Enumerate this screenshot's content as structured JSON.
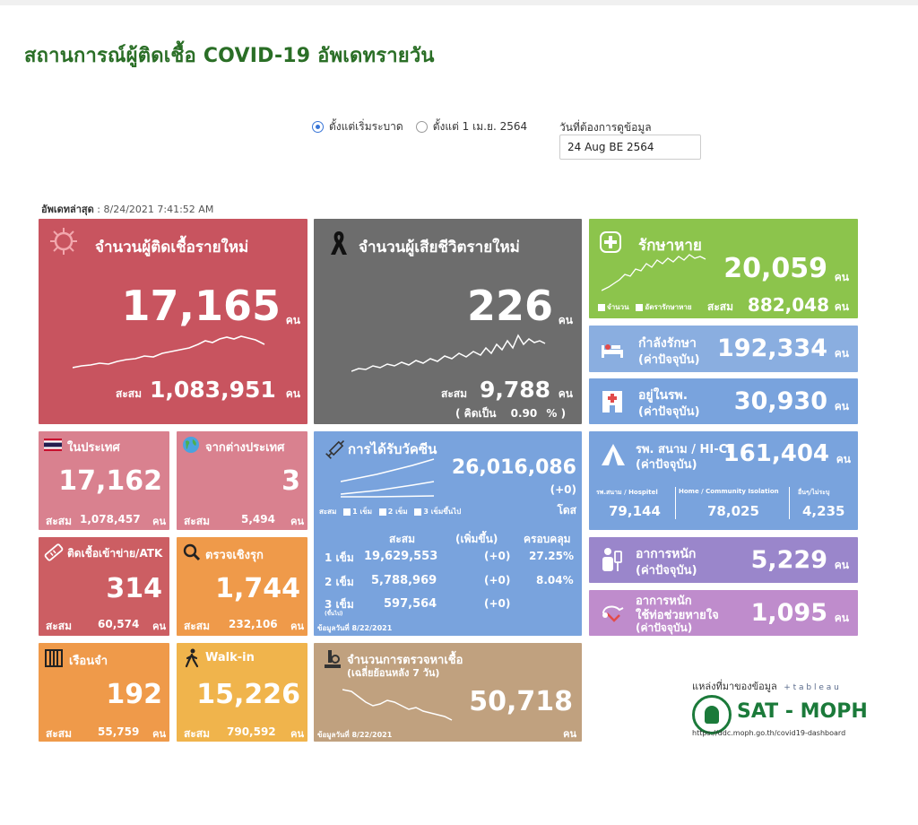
{
  "page_title": "สถานการณ์ผู้ติดเชื้อ COVID-19 อัพเดทรายวัน",
  "filters": {
    "option_all": "ตั้งแต่เริ่มระบาด",
    "option_april": "ตั้งแต่ 1 เม.ย. 2564",
    "date_label": "วันที่ต้องการดูข้อมูล",
    "date_value": "24 Aug BE 2564"
  },
  "updated": {
    "label": "อัพเดทล่าสุด",
    "value": ": 8/24/2021 7:41:52 AM"
  },
  "unit": "คน",
  "cumulative_label": "สะสม",
  "new_cases": {
    "title": "จำนวนผู้ติดเชื้อรายใหม่",
    "value": "17,165",
    "cumulative": "1,083,951"
  },
  "new_deaths": {
    "title": "จำนวนผู้เสียชีวิตรายใหม่",
    "value": "226",
    "cumulative": "9,788",
    "rate_label": "( คิดเป็น",
    "rate_value": "0.90",
    "rate_unit": "% )"
  },
  "recovered": {
    "title": "รักษาหาย",
    "value": "20,059",
    "cumulative": "882,048",
    "legend_count": "จำนวน",
    "legend_rate": "อัตรารักษาหาย"
  },
  "treating": {
    "title": "กำลังรักษา",
    "subtitle": "(ค่าปัจจุบัน)",
    "value": "192,334"
  },
  "in_hospital": {
    "title": "อยู่ในรพ.",
    "subtitle": "(ค่าปัจจุบัน)",
    "value": "30,930"
  },
  "field_hospital": {
    "title": "รพ. สนาม / HI-CI",
    "subtitle": "(ค่าปัจจุบัน)",
    "value": "161,404",
    "breakdown": [
      {
        "label": "รพ.สนาม / Hospitel",
        "value": "79,144"
      },
      {
        "label": "Home / Community Isolation",
        "value": "78,025"
      },
      {
        "label": "อื่นๆ/ไม่ระบุ",
        "value": "4,235"
      }
    ]
  },
  "severe": {
    "title": "อาการหนัก",
    "subtitle": "(ค่าปัจจุบัน)",
    "value": "5,229"
  },
  "ventilator": {
    "title": "อาการหนัก",
    "title2": "ใช้ท่อช่วยหายใจ",
    "subtitle": "(ค่าปัจจุบัน)",
    "value": "1,095"
  },
  "domestic": {
    "title": "ในประเทศ",
    "value": "17,162",
    "cumulative": "1,078,457"
  },
  "imported": {
    "title": "จากต่างประเทศ",
    "value": "3",
    "cumulative": "5,494"
  },
  "atk": {
    "title": "ติดเชื้อเข้าข่าย/ATK",
    "value": "314",
    "cumulative": "60,574"
  },
  "proactive": {
    "title": "ตรวจเชิงรุก",
    "value": "1,744",
    "cumulative": "232,106"
  },
  "prison": {
    "title": "เรือนจำ",
    "value": "192",
    "cumulative": "55,759"
  },
  "walkin": {
    "title": "Walk-in",
    "value": "15,226",
    "cumulative": "790,592"
  },
  "vaccine": {
    "title": "การได้รับวัคซีน",
    "total": "26,016,086",
    "delta": "(+0)",
    "unit": "โดส",
    "legend_prefix": "สะสม",
    "legend": [
      "1 เข็ม",
      "2 เข็ม",
      "3 เข็มขึ้นไป"
    ],
    "headers": [
      "สะสม",
      "(เพิ่มขึ้น)",
      "ครอบคลุม"
    ],
    "rows": [
      {
        "dose": "1 เข็ม",
        "total": "19,629,553",
        "delta": "(+0)",
        "coverage": "27.25%"
      },
      {
        "dose": "2 เข็ม",
        "total": "5,788,969",
        "delta": "(+0)",
        "coverage": "8.04%"
      },
      {
        "dose": "3 เข็ม",
        "dose_sub": "(ขึ้นไป)",
        "total": "597,564",
        "delta": "(+0)",
        "coverage": ""
      }
    ],
    "as_of": "ข้อมูลวันที่ 8/22/2021"
  },
  "tests": {
    "title": "จำนวนการตรวจหาเชื้อ",
    "subtitle": "(เฉลี่ยย้อนหลัง 7 วัน)",
    "value": "50,718",
    "as_of": "ข้อมูลวันที่ 8/22/2021"
  },
  "source": {
    "label": "แหล่งที่มาของข้อมูล",
    "tableau": "+ t a b l e a u",
    "brand": "SAT - MOPH",
    "url": "https://ddc.moph.go.th/covid19-dashboard"
  },
  "colors": {
    "title": "#2a6e26",
    "red": "#c8545f",
    "gray": "#6d6d6d",
    "green": "#8cc44c",
    "blue_light": "#8aaee0",
    "blue": "#79a3dd",
    "purple": "#9a86cb",
    "violet": "#bf8ccc",
    "pink": "#d9818f",
    "redsub": "#cc5e63",
    "orange": "#ef9a4a",
    "tan": "#c0a17f",
    "yellow": "#f0b44c"
  }
}
